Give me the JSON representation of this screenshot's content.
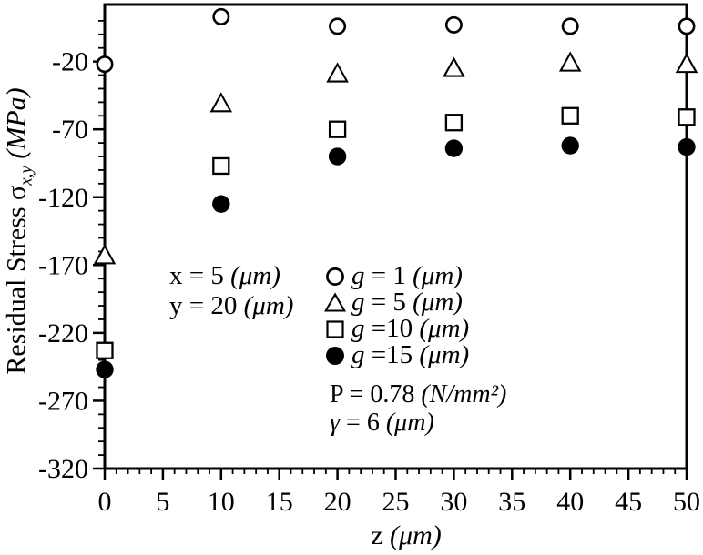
{
  "chart_data": {
    "type": "scatter",
    "title": "",
    "xlabel": {
      "text": "z",
      "unit": "(μm)"
    },
    "ylabel": {
      "text": "Residual Stress σ",
      "sub": "x,y",
      "unit": "(MPa)"
    },
    "x_axis": {
      "min": 0,
      "max": 50,
      "major_ticks": [
        0,
        5,
        10,
        15,
        20,
        25,
        30,
        35,
        40,
        45,
        50
      ],
      "minor_step": 1
    },
    "y_axis": {
      "min": -320,
      "max": 22,
      "major_ticks": [
        -20,
        -70,
        -120,
        -170,
        -220,
        -270,
        -320
      ],
      "minor_step": 10
    },
    "grid": false,
    "legend_position": "inside-center-right",
    "colors": {
      "ink": "#000000",
      "background": "#ffffff"
    },
    "series": [
      {
        "name": "g = 1 (μm)",
        "marker": "open-circle",
        "legend": {
          "var": "g",
          "eq": " = 1 ",
          "unit": "(μm)"
        },
        "points": [
          {
            "x": 0,
            "y": -22
          },
          {
            "x": 10,
            "y": 13
          },
          {
            "x": 20,
            "y": 6
          },
          {
            "x": 30,
            "y": 7
          },
          {
            "x": 40,
            "y": 6
          },
          {
            "x": 50,
            "y": 6
          }
        ]
      },
      {
        "name": "g = 5 (μm)",
        "marker": "open-triangle",
        "legend": {
          "var": "g",
          "eq": " = 5 ",
          "unit": "(μm)"
        },
        "points": [
          {
            "x": 0,
            "y": -163
          },
          {
            "x": 10,
            "y": -51
          },
          {
            "x": 20,
            "y": -29
          },
          {
            "x": 30,
            "y": -25
          },
          {
            "x": 40,
            "y": -21
          },
          {
            "x": 50,
            "y": -22
          }
        ]
      },
      {
        "name": "g = 10 (μm)",
        "marker": "open-square",
        "legend": {
          "var": "g",
          "eq": " =10 ",
          "unit": "(μm)"
        },
        "points": [
          {
            "x": 0,
            "y": -233
          },
          {
            "x": 10,
            "y": -97
          },
          {
            "x": 20,
            "y": -70
          },
          {
            "x": 30,
            "y": -65
          },
          {
            "x": 40,
            "y": -60
          },
          {
            "x": 50,
            "y": -61
          }
        ]
      },
      {
        "name": "g = 15 (μm)",
        "marker": "filled-circle",
        "legend": {
          "var": "g",
          "eq": " =15 ",
          "unit": "(μm)"
        },
        "points": [
          {
            "x": 0,
            "y": -247
          },
          {
            "x": 10,
            "y": -125
          },
          {
            "x": 20,
            "y": -90
          },
          {
            "x": 30,
            "y": -84
          },
          {
            "x": 40,
            "y": -82
          },
          {
            "x": 50,
            "y": -83
          }
        ]
      }
    ],
    "annotations": [
      {
        "var": "x",
        "eq": " = 5 ",
        "unit": "(μm)"
      },
      {
        "var": "y",
        "eq": " = 20 ",
        "unit": "(μm)"
      },
      {
        "var": "P",
        "eq": " = 0.78 ",
        "unit": "(N/mm²)"
      },
      {
        "var": "γ",
        "eq": " = 6 ",
        "unit": "(μm)"
      }
    ]
  }
}
